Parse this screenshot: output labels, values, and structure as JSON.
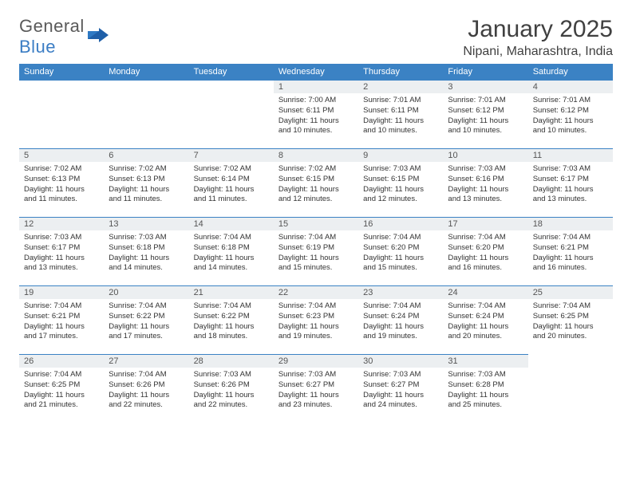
{
  "brand": {
    "text1": "General",
    "text2": "Blue"
  },
  "title": "January 2025",
  "location": "Nipani, Maharashtra, India",
  "colors": {
    "header_bg": "#3b82c4",
    "header_text": "#ffffff",
    "daynum_bg": "#eceff1",
    "border": "#3b82c4",
    "text": "#333333",
    "brand_gray": "#5a5a5a",
    "brand_blue": "#3b7dc4"
  },
  "typography": {
    "title_fontsize": 30,
    "location_fontsize": 16,
    "dayhead_fontsize": 11,
    "daynum_fontsize": 11,
    "body_fontsize": 9.5
  },
  "day_headers": [
    "Sunday",
    "Monday",
    "Tuesday",
    "Wednesday",
    "Thursday",
    "Friday",
    "Saturday"
  ],
  "weeks": [
    [
      {
        "empty": true
      },
      {
        "empty": true
      },
      {
        "empty": true
      },
      {
        "num": "1",
        "sunrise": "7:00 AM",
        "sunset": "6:11 PM",
        "daylight": "11 hours and 10 minutes."
      },
      {
        "num": "2",
        "sunrise": "7:01 AM",
        "sunset": "6:11 PM",
        "daylight": "11 hours and 10 minutes."
      },
      {
        "num": "3",
        "sunrise": "7:01 AM",
        "sunset": "6:12 PM",
        "daylight": "11 hours and 10 minutes."
      },
      {
        "num": "4",
        "sunrise": "7:01 AM",
        "sunset": "6:12 PM",
        "daylight": "11 hours and 10 minutes."
      }
    ],
    [
      {
        "num": "5",
        "sunrise": "7:02 AM",
        "sunset": "6:13 PM",
        "daylight": "11 hours and 11 minutes."
      },
      {
        "num": "6",
        "sunrise": "7:02 AM",
        "sunset": "6:13 PM",
        "daylight": "11 hours and 11 minutes."
      },
      {
        "num": "7",
        "sunrise": "7:02 AM",
        "sunset": "6:14 PM",
        "daylight": "11 hours and 11 minutes."
      },
      {
        "num": "8",
        "sunrise": "7:02 AM",
        "sunset": "6:15 PM",
        "daylight": "11 hours and 12 minutes."
      },
      {
        "num": "9",
        "sunrise": "7:03 AM",
        "sunset": "6:15 PM",
        "daylight": "11 hours and 12 minutes."
      },
      {
        "num": "10",
        "sunrise": "7:03 AM",
        "sunset": "6:16 PM",
        "daylight": "11 hours and 13 minutes."
      },
      {
        "num": "11",
        "sunrise": "7:03 AM",
        "sunset": "6:17 PM",
        "daylight": "11 hours and 13 minutes."
      }
    ],
    [
      {
        "num": "12",
        "sunrise": "7:03 AM",
        "sunset": "6:17 PM",
        "daylight": "11 hours and 13 minutes."
      },
      {
        "num": "13",
        "sunrise": "7:03 AM",
        "sunset": "6:18 PM",
        "daylight": "11 hours and 14 minutes."
      },
      {
        "num": "14",
        "sunrise": "7:04 AM",
        "sunset": "6:18 PM",
        "daylight": "11 hours and 14 minutes."
      },
      {
        "num": "15",
        "sunrise": "7:04 AM",
        "sunset": "6:19 PM",
        "daylight": "11 hours and 15 minutes."
      },
      {
        "num": "16",
        "sunrise": "7:04 AM",
        "sunset": "6:20 PM",
        "daylight": "11 hours and 15 minutes."
      },
      {
        "num": "17",
        "sunrise": "7:04 AM",
        "sunset": "6:20 PM",
        "daylight": "11 hours and 16 minutes."
      },
      {
        "num": "18",
        "sunrise": "7:04 AM",
        "sunset": "6:21 PM",
        "daylight": "11 hours and 16 minutes."
      }
    ],
    [
      {
        "num": "19",
        "sunrise": "7:04 AM",
        "sunset": "6:21 PM",
        "daylight": "11 hours and 17 minutes."
      },
      {
        "num": "20",
        "sunrise": "7:04 AM",
        "sunset": "6:22 PM",
        "daylight": "11 hours and 17 minutes."
      },
      {
        "num": "21",
        "sunrise": "7:04 AM",
        "sunset": "6:22 PM",
        "daylight": "11 hours and 18 minutes."
      },
      {
        "num": "22",
        "sunrise": "7:04 AM",
        "sunset": "6:23 PM",
        "daylight": "11 hours and 19 minutes."
      },
      {
        "num": "23",
        "sunrise": "7:04 AM",
        "sunset": "6:24 PM",
        "daylight": "11 hours and 19 minutes."
      },
      {
        "num": "24",
        "sunrise": "7:04 AM",
        "sunset": "6:24 PM",
        "daylight": "11 hours and 20 minutes."
      },
      {
        "num": "25",
        "sunrise": "7:04 AM",
        "sunset": "6:25 PM",
        "daylight": "11 hours and 20 minutes."
      }
    ],
    [
      {
        "num": "26",
        "sunrise": "7:04 AM",
        "sunset": "6:25 PM",
        "daylight": "11 hours and 21 minutes."
      },
      {
        "num": "27",
        "sunrise": "7:04 AM",
        "sunset": "6:26 PM",
        "daylight": "11 hours and 22 minutes."
      },
      {
        "num": "28",
        "sunrise": "7:03 AM",
        "sunset": "6:26 PM",
        "daylight": "11 hours and 22 minutes."
      },
      {
        "num": "29",
        "sunrise": "7:03 AM",
        "sunset": "6:27 PM",
        "daylight": "11 hours and 23 minutes."
      },
      {
        "num": "30",
        "sunrise": "7:03 AM",
        "sunset": "6:27 PM",
        "daylight": "11 hours and 24 minutes."
      },
      {
        "num": "31",
        "sunrise": "7:03 AM",
        "sunset": "6:28 PM",
        "daylight": "11 hours and 25 minutes."
      },
      {
        "empty": true
      }
    ]
  ],
  "labels": {
    "sunrise": "Sunrise: ",
    "sunset": "Sunset: ",
    "daylight": "Daylight: "
  }
}
